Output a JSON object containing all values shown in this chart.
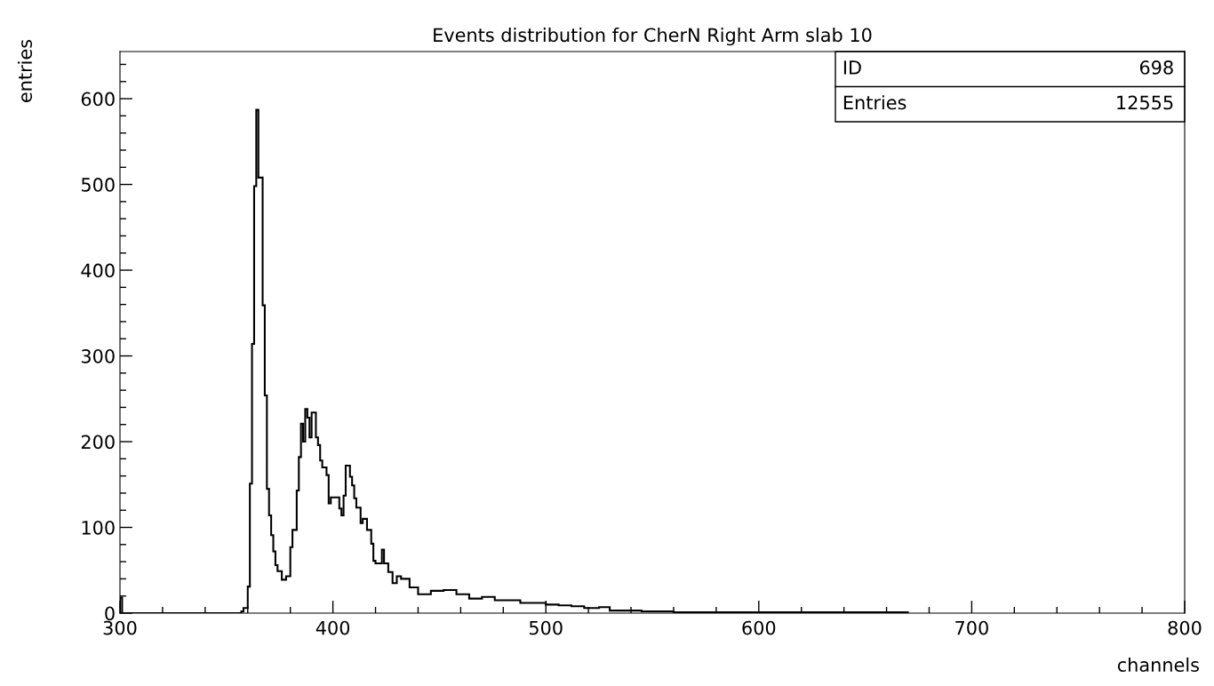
{
  "chart_data": {
    "type": "histogram",
    "title": "Events distribution for CherN Right Arm slab 10",
    "xlabel": "channels",
    "ylabel": "entries",
    "bins": [
      300,
      301,
      357,
      358,
      360,
      361,
      362,
      363,
      364,
      365,
      367,
      368,
      369,
      370,
      371,
      372,
      373,
      374,
      376,
      378,
      380,
      381,
      383,
      384,
      385,
      386,
      387,
      388,
      389,
      390,
      392,
      393,
      394,
      395,
      397,
      398,
      399,
      403,
      404,
      405,
      406,
      408,
      409,
      410,
      411,
      413,
      414,
      416,
      418,
      419,
      420,
      423,
      424,
      426,
      428,
      430,
      432,
      436,
      440,
      446,
      452,
      458,
      464,
      470,
      476,
      482,
      488,
      494,
      500,
      506,
      512,
      518,
      525,
      530,
      545,
      560,
      600,
      670
    ],
    "values": [
      18,
      0,
      2,
      6,
      31,
      151,
      314,
      498,
      587,
      508,
      359,
      254,
      145,
      114,
      91,
      72,
      56,
      49,
      39,
      43,
      77,
      97,
      143,
      182,
      221,
      200,
      238,
      228,
      205,
      234,
      205,
      196,
      178,
      170,
      161,
      128,
      135,
      122,
      114,
      137,
      172,
      159,
      149,
      134,
      123,
      105,
      110,
      97,
      81,
      61,
      58,
      74,
      58,
      48,
      35,
      43,
      40,
      30,
      22,
      26,
      27,
      22,
      17,
      19,
      15,
      15,
      12,
      12,
      10,
      9,
      8,
      6,
      7,
      3,
      2,
      1,
      1
    ],
    "color": "#000000",
    "xlim": [
      300,
      800
    ],
    "xticks": [
      300,
      400,
      500,
      600,
      700,
      800
    ],
    "ylim": [
      0,
      655
    ],
    "yticks": [
      0,
      100,
      200,
      300,
      400,
      500,
      600
    ],
    "grid": false,
    "legend": false,
    "annotations": [
      "ID",
      "698",
      "Entries",
      "12555"
    ]
  }
}
